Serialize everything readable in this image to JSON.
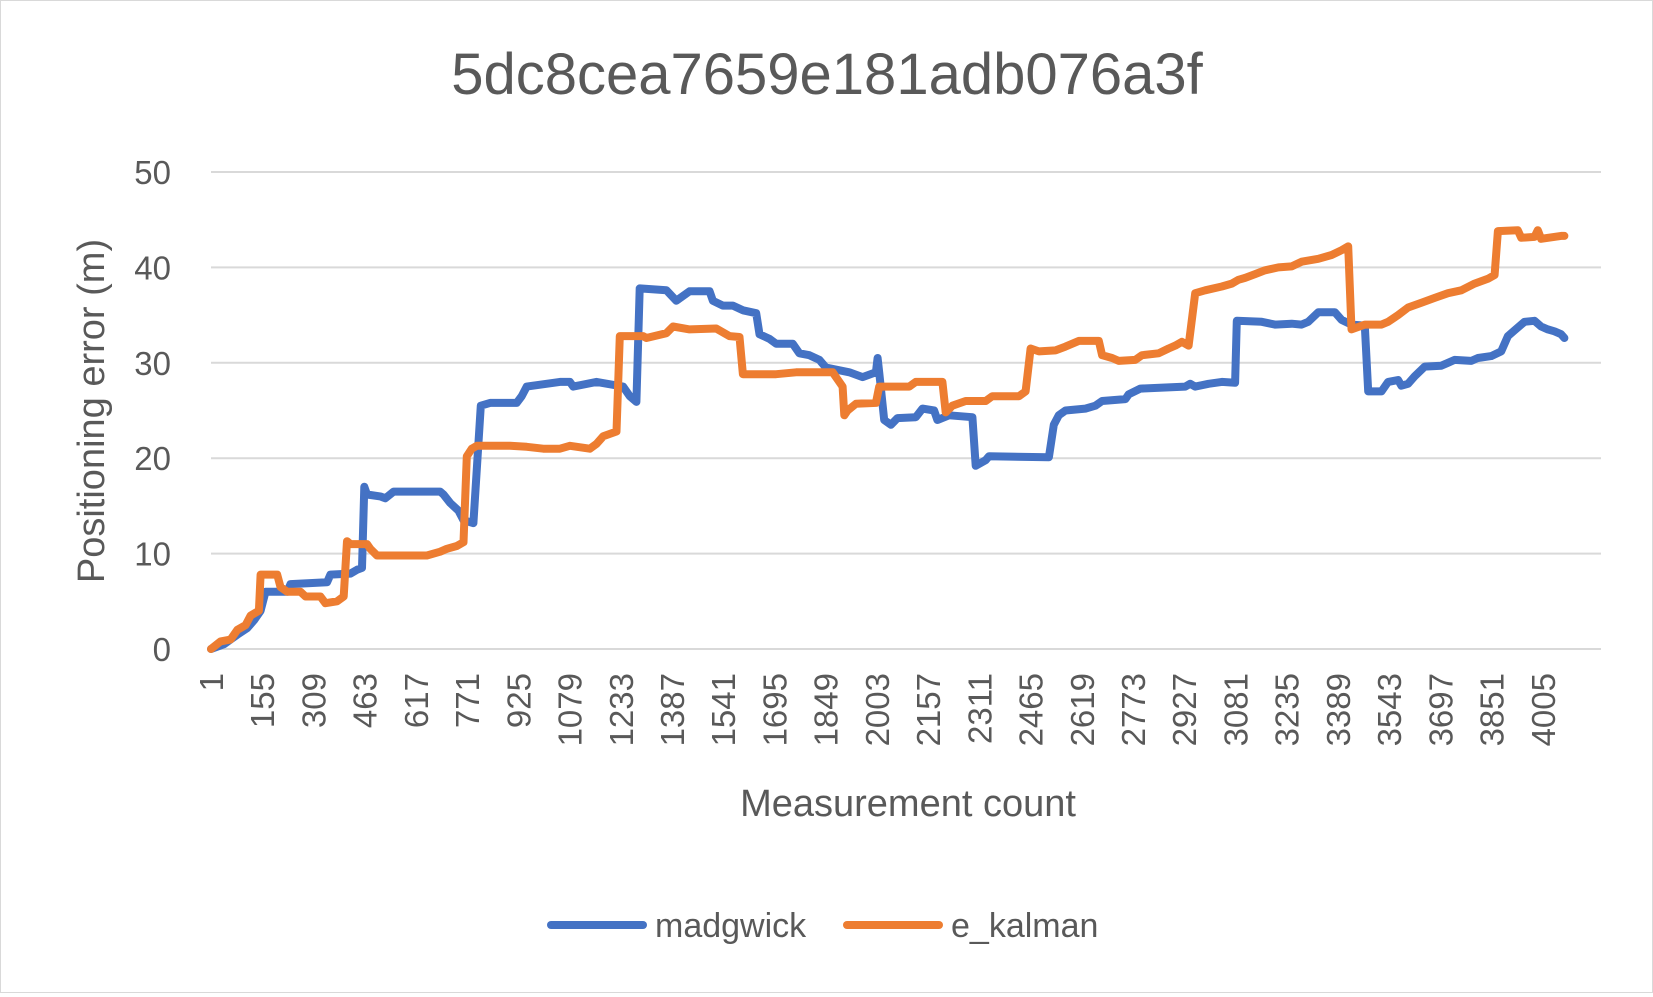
{
  "chart_data": {
    "type": "line",
    "title": "5dc8cea7659e181adb076a3f",
    "xlabel": "Measurement count",
    "ylabel": "Positioning error (m)",
    "ylim": [
      0,
      50
    ],
    "yticks": [
      0,
      10,
      20,
      30,
      40,
      50
    ],
    "xlim": [
      1,
      4180
    ],
    "x_tick_labels": [
      "1",
      "155",
      "309",
      "463",
      "617",
      "771",
      "925",
      "1079",
      "1233",
      "1387",
      "1541",
      "1695",
      "1849",
      "2003",
      "2157",
      "2311",
      "2465",
      "2619",
      "2773",
      "2927",
      "3081",
      "3235",
      "3389",
      "3543",
      "3697",
      "3851",
      "4005"
    ],
    "grid": "horizontal",
    "legend_position": "bottom",
    "series": [
      {
        "name": "madgwick",
        "color": "#4472C4",
        "points": [
          [
            1,
            0
          ],
          [
            40,
            0.5
          ],
          [
            60,
            1
          ],
          [
            80,
            1.5
          ],
          [
            110,
            2.2
          ],
          [
            130,
            3
          ],
          [
            150,
            4
          ],
          [
            165,
            6
          ],
          [
            230,
            6
          ],
          [
            240,
            6.8
          ],
          [
            350,
            7
          ],
          [
            360,
            7.8
          ],
          [
            420,
            7.9
          ],
          [
            440,
            8.3
          ],
          [
            455,
            8.5
          ],
          [
            462,
            17
          ],
          [
            470,
            16.2
          ],
          [
            510,
            16
          ],
          [
            525,
            15.8
          ],
          [
            550,
            16.5
          ],
          [
            690,
            16.5
          ],
          [
            700,
            16.2
          ],
          [
            720,
            15.3
          ],
          [
            745,
            14.5
          ],
          [
            760,
            13.5
          ],
          [
            790,
            13.2
          ],
          [
            812,
            25.5
          ],
          [
            840,
            25.8
          ],
          [
            920,
            25.8
          ],
          [
            935,
            26.5
          ],
          [
            950,
            27.5
          ],
          [
            1050,
            28
          ],
          [
            1080,
            28
          ],
          [
            1090,
            27.5
          ],
          [
            1160,
            28
          ],
          [
            1240,
            27.5
          ],
          [
            1260,
            26.5
          ],
          [
            1280,
            25.9
          ],
          [
            1290,
            37.8
          ],
          [
            1370,
            37.6
          ],
          [
            1400,
            36.5
          ],
          [
            1440,
            37.5
          ],
          [
            1500,
            37.5
          ],
          [
            1510,
            36.5
          ],
          [
            1540,
            36
          ],
          [
            1570,
            36
          ],
          [
            1600,
            35.5
          ],
          [
            1640,
            35.2
          ],
          [
            1650,
            33
          ],
          [
            1680,
            32.5
          ],
          [
            1700,
            32
          ],
          [
            1750,
            32
          ],
          [
            1770,
            31
          ],
          [
            1800,
            30.8
          ],
          [
            1830,
            30.3
          ],
          [
            1850,
            29.5
          ],
          [
            1920,
            29
          ],
          [
            1960,
            28.5
          ],
          [
            2000,
            29
          ],
          [
            2005,
            30.5
          ],
          [
            2010,
            29
          ],
          [
            2025,
            24
          ],
          [
            2045,
            23.5
          ],
          [
            2065,
            24.2
          ],
          [
            2120,
            24.3
          ],
          [
            2140,
            25.2
          ],
          [
            2175,
            25
          ],
          [
            2185,
            24
          ],
          [
            2220,
            24.5
          ],
          [
            2290,
            24.3
          ],
          [
            2300,
            19.2
          ],
          [
            2330,
            19.8
          ],
          [
            2340,
            20.2
          ],
          [
            2520,
            20.1
          ],
          [
            2535,
            23.5
          ],
          [
            2550,
            24.5
          ],
          [
            2570,
            25
          ],
          [
            2630,
            25.2
          ],
          [
            2660,
            25.5
          ],
          [
            2680,
            26
          ],
          [
            2750,
            26.2
          ],
          [
            2760,
            26.7
          ],
          [
            2795,
            27.3
          ],
          [
            2930,
            27.5
          ],
          [
            2945,
            27.8
          ],
          [
            2960,
            27.5
          ],
          [
            3000,
            27.8
          ],
          [
            3040,
            28
          ],
          [
            3080,
            27.9
          ],
          [
            3085,
            34.4
          ],
          [
            3160,
            34.3
          ],
          [
            3200,
            34
          ],
          [
            3250,
            34.1
          ],
          [
            3280,
            34
          ],
          [
            3300,
            34.3
          ],
          [
            3330,
            35.3
          ],
          [
            3380,
            35.3
          ],
          [
            3400,
            34.5
          ],
          [
            3430,
            34
          ],
          [
            3470,
            33.9
          ],
          [
            3480,
            27
          ],
          [
            3520,
            27
          ],
          [
            3540,
            28
          ],
          [
            3570,
            28.2
          ],
          [
            3580,
            27.6
          ],
          [
            3600,
            27.8
          ],
          [
            3620,
            28.6
          ],
          [
            3650,
            29.6
          ],
          [
            3700,
            29.7
          ],
          [
            3720,
            30
          ],
          [
            3740,
            30.3
          ],
          [
            3790,
            30.2
          ],
          [
            3810,
            30.5
          ],
          [
            3850,
            30.7
          ],
          [
            3880,
            31.2
          ],
          [
            3900,
            32.8
          ],
          [
            3920,
            33.4
          ],
          [
            3950,
            34.3
          ],
          [
            3980,
            34.4
          ],
          [
            4000,
            33.8
          ],
          [
            4020,
            33.5
          ],
          [
            4040,
            33.3
          ],
          [
            4060,
            33
          ],
          [
            4070,
            32.6
          ]
        ]
      },
      {
        "name": "e_kalman",
        "color": "#ED7D31",
        "points": [
          [
            1,
            0
          ],
          [
            30,
            0.8
          ],
          [
            60,
            1
          ],
          [
            80,
            2
          ],
          [
            105,
            2.5
          ],
          [
            120,
            3.5
          ],
          [
            145,
            4
          ],
          [
            150,
            7.8
          ],
          [
            200,
            7.8
          ],
          [
            210,
            6.5
          ],
          [
            230,
            6
          ],
          [
            270,
            6
          ],
          [
            285,
            5.5
          ],
          [
            330,
            5.5
          ],
          [
            345,
            4.8
          ],
          [
            380,
            5
          ],
          [
            400,
            5.5
          ],
          [
            410,
            11.3
          ],
          [
            420,
            11
          ],
          [
            470,
            11
          ],
          [
            480,
            10.5
          ],
          [
            500,
            9.8
          ],
          [
            650,
            9.8
          ],
          [
            690,
            10.2
          ],
          [
            710,
            10.5
          ],
          [
            740,
            10.8
          ],
          [
            760,
            11.2
          ],
          [
            770,
            20.2
          ],
          [
            785,
            21
          ],
          [
            800,
            21.3
          ],
          [
            900,
            21.3
          ],
          [
            950,
            21.2
          ],
          [
            1000,
            21
          ],
          [
            1050,
            21
          ],
          [
            1080,
            21.3
          ],
          [
            1140,
            21
          ],
          [
            1160,
            21.5
          ],
          [
            1180,
            22.3
          ],
          [
            1220,
            22.8
          ],
          [
            1230,
            32.8
          ],
          [
            1300,
            32.8
          ],
          [
            1310,
            32.6
          ],
          [
            1370,
            33.1
          ],
          [
            1390,
            33.8
          ],
          [
            1440,
            33.5
          ],
          [
            1520,
            33.6
          ],
          [
            1560,
            32.8
          ],
          [
            1590,
            32.7
          ],
          [
            1600,
            28.8
          ],
          [
            1700,
            28.8
          ],
          [
            1760,
            29
          ],
          [
            1870,
            29
          ],
          [
            1880,
            28.5
          ],
          [
            1900,
            27.5
          ],
          [
            1905,
            24.5
          ],
          [
            1915,
            25
          ],
          [
            1940,
            25.7
          ],
          [
            2000,
            25.8
          ],
          [
            2010,
            27.5
          ],
          [
            2100,
            27.5
          ],
          [
            2120,
            28
          ],
          [
            2200,
            28
          ],
          [
            2210,
            24.8
          ],
          [
            2230,
            25.5
          ],
          [
            2270,
            26
          ],
          [
            2330,
            26
          ],
          [
            2350,
            26.5
          ],
          [
            2430,
            26.5
          ],
          [
            2450,
            27
          ],
          [
            2465,
            31.5
          ],
          [
            2490,
            31.2
          ],
          [
            2540,
            31.3
          ],
          [
            2570,
            31.7
          ],
          [
            2610,
            32.3
          ],
          [
            2670,
            32.3
          ],
          [
            2680,
            30.8
          ],
          [
            2710,
            30.5
          ],
          [
            2730,
            30.2
          ],
          [
            2780,
            30.3
          ],
          [
            2800,
            30.8
          ],
          [
            2850,
            31
          ],
          [
            2880,
            31.5
          ],
          [
            2900,
            31.8
          ],
          [
            2920,
            32.2
          ],
          [
            2940,
            31.8
          ],
          [
            2960,
            37.3
          ],
          [
            2990,
            37.6
          ],
          [
            3040,
            38
          ],
          [
            3070,
            38.3
          ],
          [
            3090,
            38.7
          ],
          [
            3110,
            38.9
          ],
          [
            3140,
            39.3
          ],
          [
            3170,
            39.7
          ],
          [
            3210,
            40
          ],
          [
            3250,
            40.1
          ],
          [
            3280,
            40.6
          ],
          [
            3330,
            40.9
          ],
          [
            3370,
            41.3
          ],
          [
            3400,
            41.8
          ],
          [
            3420,
            42.2
          ],
          [
            3430,
            33.5
          ],
          [
            3470,
            34
          ],
          [
            3520,
            34
          ],
          [
            3540,
            34.3
          ],
          [
            3570,
            35
          ],
          [
            3600,
            35.8
          ],
          [
            3640,
            36.3
          ],
          [
            3680,
            36.8
          ],
          [
            3720,
            37.3
          ],
          [
            3760,
            37.6
          ],
          [
            3800,
            38.3
          ],
          [
            3840,
            38.8
          ],
          [
            3860,
            39.2
          ],
          [
            3870,
            43.8
          ],
          [
            3930,
            43.9
          ],
          [
            3940,
            43.1
          ],
          [
            3980,
            43.2
          ],
          [
            3990,
            43.9
          ],
          [
            4000,
            43
          ],
          [
            4060,
            43.3
          ],
          [
            4070,
            43.3
          ]
        ]
      }
    ]
  }
}
